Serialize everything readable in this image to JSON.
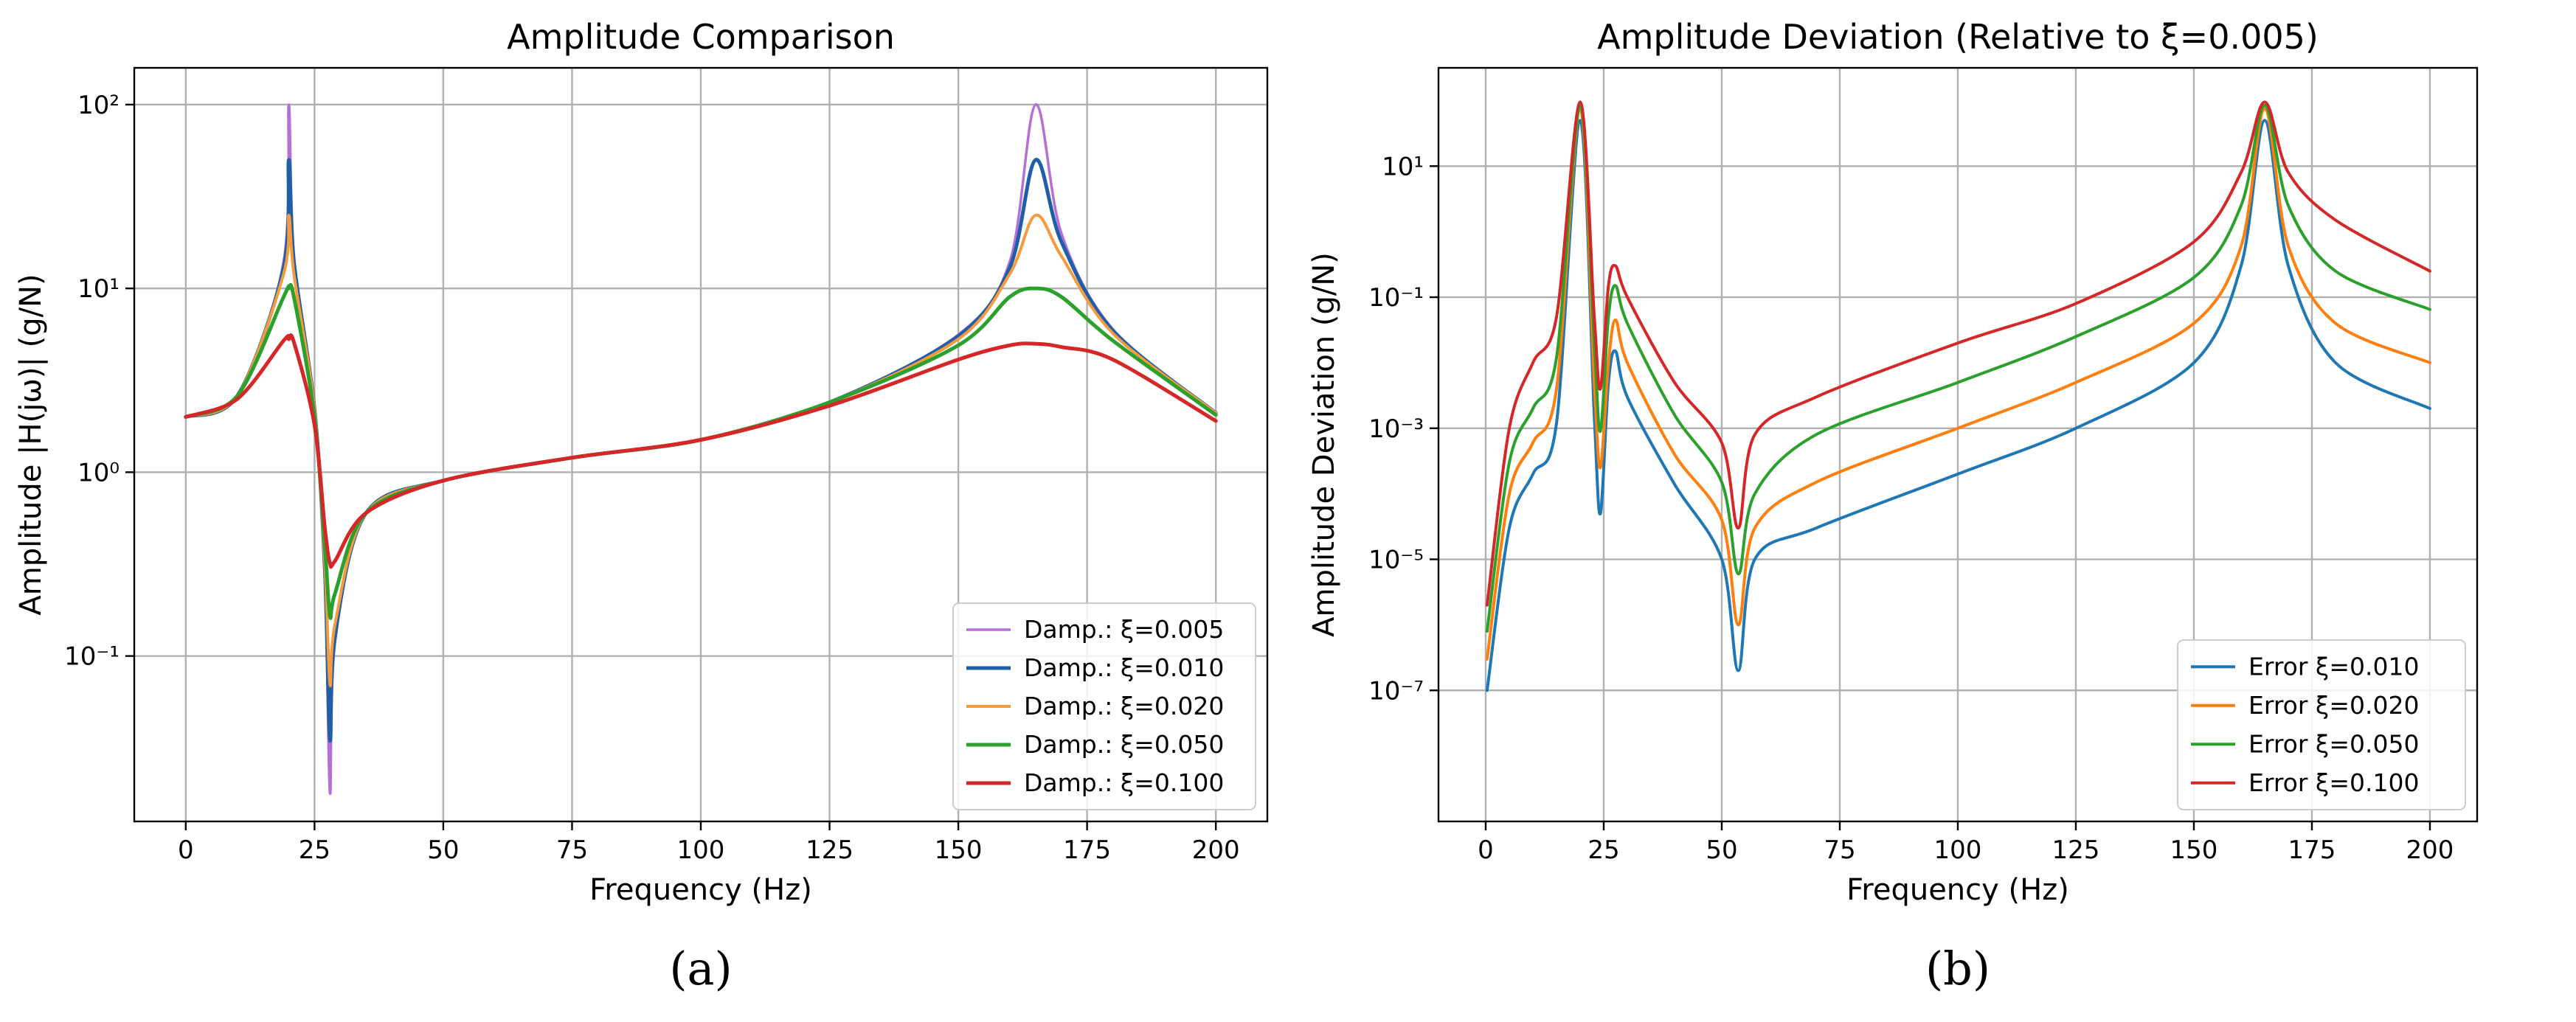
{
  "chart_data": [
    {
      "type": "line",
      "title": "Amplitude Comparison",
      "xlabel": "Frequency (Hz)",
      "ylabel": "Amplitude |H(jω)| (g/N)",
      "yscale": "log",
      "xlim": [
        -10,
        210
      ],
      "ylim_log10": [
        -1.9,
        2.2
      ],
      "xticks": [
        0,
        25,
        50,
        75,
        100,
        125,
        150,
        175,
        200
      ],
      "yticks_exp": [
        -1,
        0,
        1,
        2
      ],
      "legend_loc": "lower right",
      "series": [
        {
          "name": "Damp.: ξ=0.005",
          "zeta": 0.005,
          "color": "#b56fd6",
          "width": 3.5,
          "x": [
            0,
            10,
            19,
            20,
            21,
            25,
            27,
            28,
            29,
            35,
            50,
            75,
            100,
            125,
            150,
            160,
            165,
            170,
            180,
            200
          ],
          "y": [
            2.0,
            2.6,
            14,
            100,
            15,
            2.2,
            0.3,
            0.018,
            0.12,
            0.6,
            0.9,
            1.2,
            1.5,
            2.4,
            5.6,
            14,
            100,
            20,
            6,
            2.1
          ]
        },
        {
          "name": "Damp.: ξ=0.010",
          "zeta": 0.01,
          "color": "#1f5fa8",
          "width": 5,
          "x": [
            0,
            10,
            19,
            20,
            21,
            25,
            27,
            28,
            29,
            35,
            50,
            75,
            100,
            125,
            150,
            160,
            165,
            170,
            180,
            200
          ],
          "y": [
            2.0,
            2.6,
            13,
            50,
            14,
            2.2,
            0.3,
            0.035,
            0.13,
            0.6,
            0.9,
            1.2,
            1.5,
            2.4,
            5.5,
            13,
            50,
            18,
            5.9,
            2.1
          ]
        },
        {
          "name": "Damp.: ξ=0.020",
          "zeta": 0.02,
          "color": "#f59b3d",
          "width": 4,
          "x": [
            0,
            10,
            19,
            20,
            21,
            25,
            27,
            28,
            29,
            35,
            50,
            75,
            100,
            125,
            150,
            160,
            165,
            170,
            180,
            200
          ],
          "y": [
            2.0,
            2.6,
            12,
            25,
            12,
            2.2,
            0.32,
            0.07,
            0.15,
            0.6,
            0.9,
            1.2,
            1.5,
            2.4,
            5.3,
            12,
            25,
            15,
            5.7,
            2.1
          ]
        },
        {
          "name": "Damp.: ξ=0.050",
          "zeta": 0.05,
          "color": "#2ca02c",
          "width": 5,
          "x": [
            0,
            10,
            19,
            20,
            21,
            25,
            27,
            28,
            29,
            35,
            50,
            75,
            100,
            125,
            150,
            160,
            165,
            170,
            180,
            200
          ],
          "y": [
            2.0,
            2.6,
            9,
            10,
            9,
            2.0,
            0.4,
            0.165,
            0.22,
            0.6,
            0.9,
            1.2,
            1.5,
            2.4,
            4.9,
            9,
            10,
            9,
            5.2,
            2.05
          ]
        },
        {
          "name": "Damp.: ξ=0.100",
          "zeta": 0.1,
          "color": "#d62728",
          "width": 5,
          "x": [
            0,
            10,
            19,
            20,
            21,
            25,
            27,
            28,
            29,
            35,
            50,
            75,
            100,
            125,
            150,
            160,
            165,
            170,
            180,
            200
          ],
          "y": [
            2.0,
            2.5,
            5.2,
            5.3,
            5.1,
            1.8,
            0.5,
            0.32,
            0.33,
            0.6,
            0.9,
            1.2,
            1.5,
            2.3,
            4.1,
            4.9,
            5.0,
            4.8,
            4.1,
            1.9
          ]
        }
      ]
    },
    {
      "type": "line",
      "title": "Amplitude Deviation (Relative to ξ=0.005)",
      "xlabel": "Frequency (Hz)",
      "ylabel": "Amplitude Deviation (g/N)",
      "yscale": "log",
      "xlim": [
        -10,
        210
      ],
      "ylim_log10": [
        -9.0,
        2.5
      ],
      "xticks": [
        0,
        25,
        50,
        75,
        100,
        125,
        150,
        175,
        200
      ],
      "yticks_exp": [
        -7,
        -5,
        -3,
        -1,
        1
      ],
      "legend_loc": "lower right",
      "series": [
        {
          "name": "Error ξ=0.010",
          "zeta": 0.01,
          "color": "#1f77b4",
          "width": 4,
          "x": [
            0.3,
            5,
            10,
            15,
            20,
            23,
            24.3,
            26,
            27.5,
            30,
            40,
            50,
            53.5,
            57,
            70,
            100,
            125,
            150,
            160,
            165,
            170,
            180,
            200
          ],
          "y": [
            1e-07,
            3e-05,
            0.0002,
            0.0012,
            50,
            0.0015,
            5e-05,
            0.005,
            0.015,
            0.003,
            0.00014,
            1e-05,
            2e-07,
            1e-05,
            3e-05,
            0.0002,
            0.001,
            0.01,
            0.3,
            50,
            0.3,
            0.01,
            0.002
          ]
        },
        {
          "name": "Error ξ=0.020",
          "zeta": 0.02,
          "color": "#ff7f0e",
          "width": 4,
          "x": [
            0.3,
            5,
            10,
            15,
            20,
            23,
            24.3,
            26,
            27.5,
            30,
            40,
            50,
            53.5,
            57,
            70,
            100,
            125,
            150,
            160,
            165,
            170,
            180,
            200
          ],
          "y": [
            3e-07,
            0.0001,
            0.0006,
            0.004,
            75,
            0.005,
            0.00025,
            0.01,
            0.045,
            0.01,
            0.0004,
            4e-05,
            1e-06,
            3e-05,
            0.00015,
            0.001,
            0.005,
            0.04,
            0.6,
            75,
            0.6,
            0.04,
            0.01
          ]
        },
        {
          "name": "Error ξ=0.050",
          "zeta": 0.05,
          "color": "#2ca02c",
          "width": 4,
          "x": [
            0.3,
            5,
            10,
            15,
            20,
            23,
            24.3,
            26,
            27.5,
            30,
            40,
            50,
            53.5,
            57,
            70,
            100,
            125,
            150,
            160,
            165,
            170,
            180,
            200
          ],
          "y": [
            8e-07,
            0.0003,
            0.002,
            0.012,
            85,
            0.02,
            0.0009,
            0.05,
            0.15,
            0.04,
            0.0016,
            0.00015,
            6e-06,
            0.0001,
            0.0008,
            0.005,
            0.025,
            0.2,
            2.5,
            85,
            2.5,
            0.25,
            0.065
          ]
        },
        {
          "name": "Error ξ=0.100",
          "zeta": 0.1,
          "color": "#d62728",
          "width": 4,
          "x": [
            0.3,
            5,
            10,
            15,
            20,
            23,
            24.3,
            26,
            27.5,
            30,
            40,
            50,
            53.5,
            57,
            70,
            100,
            125,
            150,
            160,
            165,
            170,
            180,
            200
          ],
          "y": [
            2e-06,
            0.001,
            0.01,
            0.05,
            95,
            0.05,
            0.004,
            0.15,
            0.3,
            0.1,
            0.005,
            0.0006,
            3e-05,
            0.0008,
            0.003,
            0.02,
            0.08,
            0.7,
            8,
            95,
            8,
            1.5,
            0.25
          ]
        }
      ]
    }
  ],
  "subfigure_labels": [
    "(a)",
    "(b)"
  ]
}
